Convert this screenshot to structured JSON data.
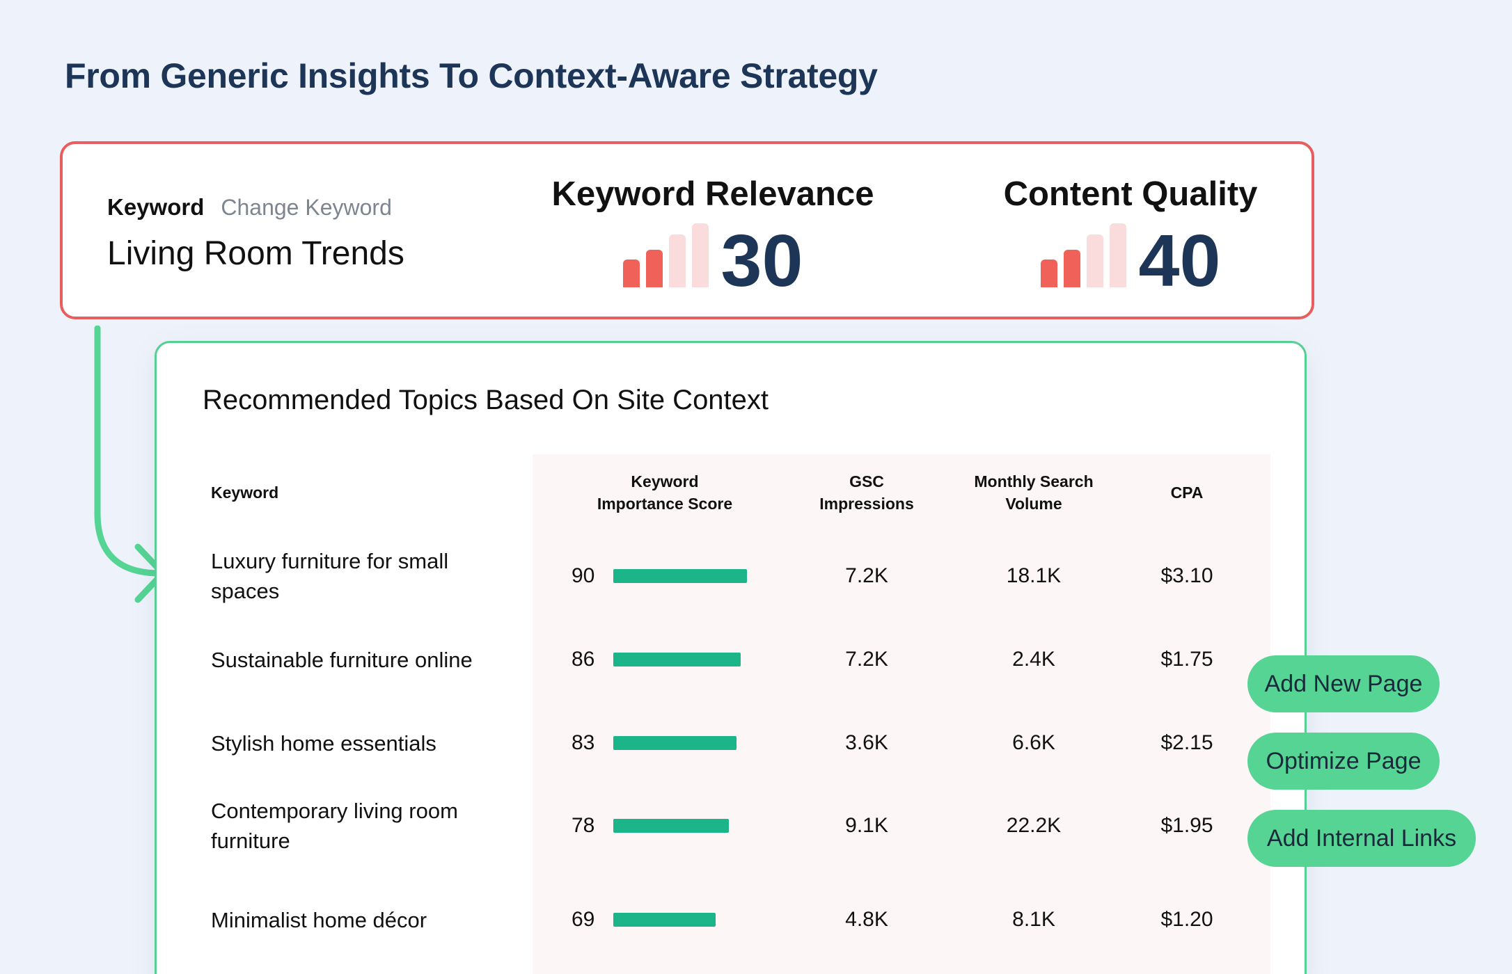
{
  "page": {
    "title": "From Generic Insights To Context-Aware Strategy"
  },
  "keyword_card": {
    "keyword_label": "Keyword",
    "change_keyword": "Change Keyword",
    "keyword_value": "Living Room Trends",
    "metrics": [
      {
        "title": "Keyword Relevance",
        "score": "30",
        "level": 2,
        "max_level": 4
      },
      {
        "title": "Content Quality",
        "score": "40",
        "level": 2,
        "max_level": 4
      }
    ],
    "colors": {
      "border": "#e85d5d",
      "bar_active": "#f0615a",
      "bar_inactive": "#fbdcdc",
      "score": "#1d3557"
    }
  },
  "topics": {
    "title": "Recommended Topics Based On Site Context",
    "columns": {
      "keyword": "Keyword",
      "importance": [
        "Keyword",
        "Importance Score"
      ],
      "gsc": [
        "GSC",
        "Impressions"
      ],
      "volume": [
        "Monthly Search",
        "Volume"
      ],
      "cpa": "CPA"
    },
    "rows": [
      {
        "keyword": [
          "Luxury furniture for small",
          "spaces"
        ],
        "score": "90",
        "score_value": 90,
        "gsc": "7.2K",
        "volume": "18.1K",
        "cpa": "$3.10"
      },
      {
        "keyword": [
          "Sustainable furniture online"
        ],
        "score": "86",
        "score_value": 86,
        "gsc": "7.2K",
        "volume": "2.4K",
        "cpa": "$1.75"
      },
      {
        "keyword": [
          "Stylish home essentials"
        ],
        "score": "83",
        "score_value": 83,
        "gsc": "3.6K",
        "volume": "6.6K",
        "cpa": "$2.15"
      },
      {
        "keyword": [
          "Contemporary living room",
          "furniture"
        ],
        "score": "78",
        "score_value": 78,
        "gsc": "9.1K",
        "volume": "22.2K",
        "cpa": "$1.95"
      },
      {
        "keyword": [
          "Minimalist home décor"
        ],
        "score": "69",
        "score_value": 69,
        "gsc": "4.8K",
        "volume": "8.1K",
        "cpa": "$1.20"
      }
    ],
    "colors": {
      "border": "#55cf94",
      "score_bar": "#1cb489",
      "metric_bg": "#fdf6f6"
    }
  },
  "actions": {
    "add_new_page": "Add New Page",
    "optimize_page": "Optimize Page",
    "add_internal_links": "Add Internal Links",
    "color": "#55d494"
  }
}
